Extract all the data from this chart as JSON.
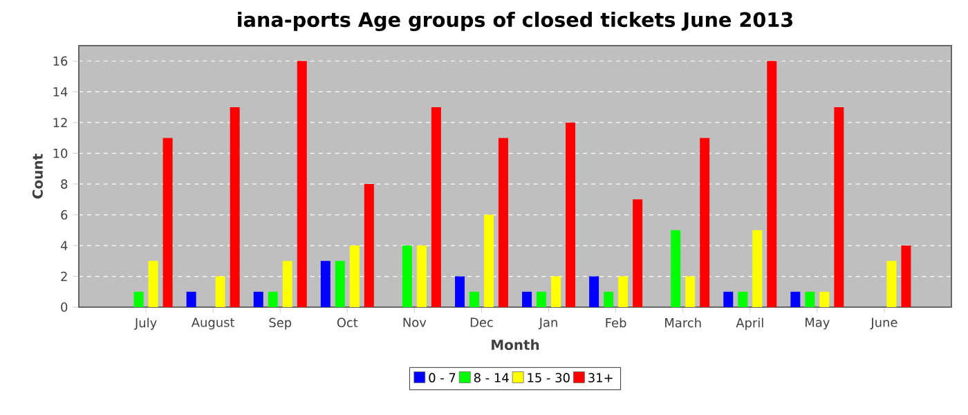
{
  "chart_data": {
    "type": "bar",
    "title": "iana-ports Age groups of closed tickets June 2013",
    "xlabel": "Month",
    "ylabel": "Count",
    "categories": [
      "July",
      "August",
      "Sep",
      "Oct",
      "Nov",
      "Dec",
      "Jan",
      "Feb",
      "March",
      "April",
      "May",
      "June"
    ],
    "series": [
      {
        "name": "0 - 7",
        "color": "#0000ff",
        "values": [
          0,
          1,
          1,
          3,
          0,
          2,
          1,
          2,
          0,
          1,
          1,
          0
        ]
      },
      {
        "name": "8 - 14",
        "color": "#00ff00",
        "values": [
          1,
          0,
          1,
          3,
          4,
          1,
          1,
          1,
          5,
          1,
          1,
          0
        ]
      },
      {
        "name": "15 - 30",
        "color": "#ffff00",
        "values": [
          3,
          2,
          3,
          4,
          4,
          6,
          2,
          2,
          2,
          5,
          1,
          3
        ]
      },
      {
        "name": "31+",
        "color": "#ff0000",
        "values": [
          11,
          13,
          16,
          8,
          13,
          11,
          12,
          7,
          11,
          16,
          13,
          4
        ]
      }
    ],
    "ylim": [
      0,
      17
    ],
    "yticks": [
      0,
      2,
      4,
      6,
      8,
      10,
      12,
      14,
      16
    ],
    "grid": "y",
    "legend": "bottom"
  }
}
